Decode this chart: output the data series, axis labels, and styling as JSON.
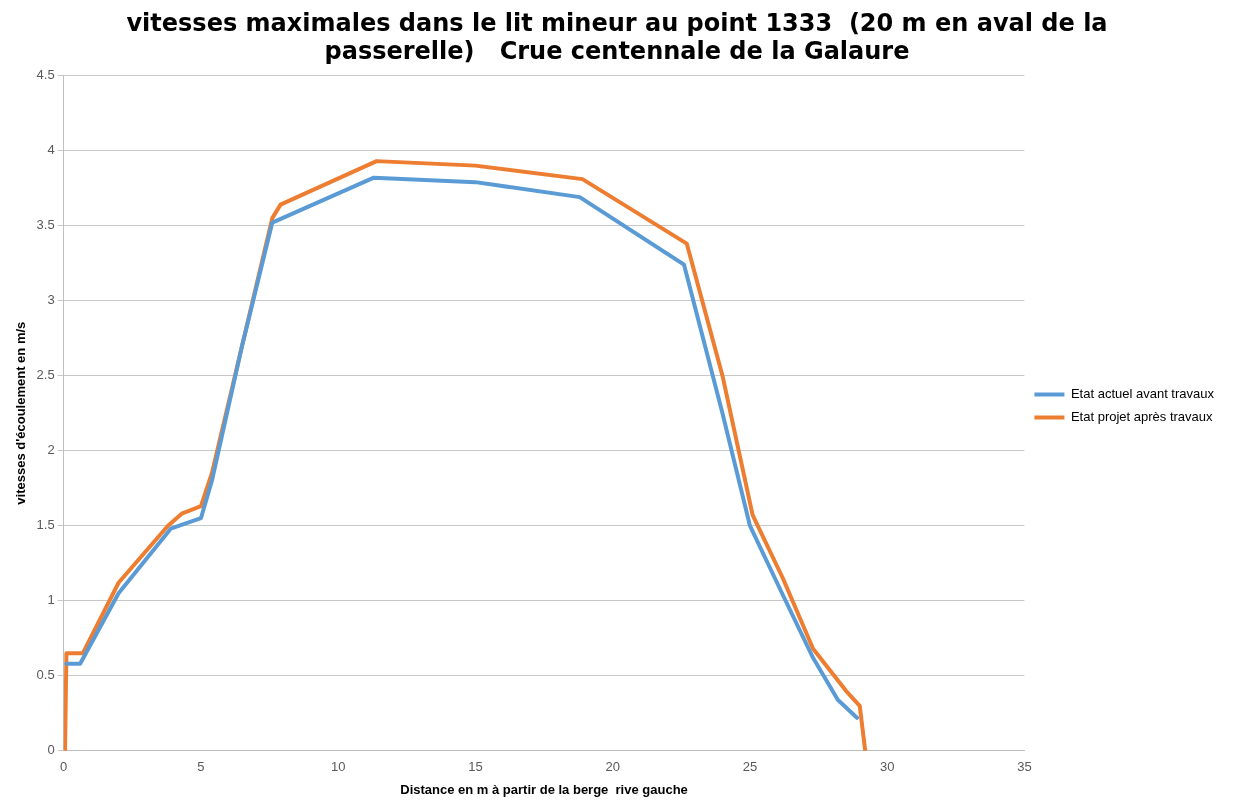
{
  "chart_data": {
    "type": "line",
    "title": "vitesses maximales dans le lit mineur au point 1333  (20 m en aval de la passerelle)   Crue centennale de la Galaure",
    "xlabel": "Distance en m à partir de la berge  rive gauche",
    "ylabel": "vitesses d'écoulement en m/s",
    "xlim": [
      0,
      35
    ],
    "xticks": [
      0,
      5,
      10,
      15,
      20,
      25,
      30,
      35
    ],
    "ylim": [
      0,
      4.5
    ],
    "yticks": [
      0,
      0.5,
      1,
      1.5,
      2,
      2.5,
      3,
      3.5,
      4,
      4.5
    ],
    "grid": "y",
    "legend": "right",
    "marker": "none",
    "line_style": "solid",
    "series": [
      {
        "name": "Etat actuel avant travaux",
        "color": "#5b9bd5",
        "x": [
          0.1,
          0.6,
          2,
          3.9,
          5,
          5.4,
          6.5,
          7.6,
          11.3,
          15,
          18.8,
          22.6,
          24,
          25,
          26.3,
          27.3,
          28.2,
          28.9
        ],
        "values": [
          0.58,
          0.58,
          1.05,
          1.48,
          1.55,
          1.8,
          2.7,
          3.52,
          3.82,
          3.79,
          3.69,
          3.24,
          2.25,
          1.5,
          1.0,
          0.62,
          0.34,
          0.22
        ]
      },
      {
        "name": "Etat projet après travaux",
        "color": "#ed7d31",
        "x": [
          0.05,
          0.1,
          0.7,
          2,
          3.8,
          4.3,
          5,
          5.4,
          7.6,
          7.9,
          11.4,
          15,
          18.9,
          22.7,
          24,
          25.1,
          26.2,
          27.3,
          28.5,
          29,
          29.2
        ],
        "values": [
          0,
          0.65,
          0.65,
          1.12,
          1.5,
          1.58,
          1.63,
          1.85,
          3.55,
          3.64,
          3.93,
          3.9,
          3.81,
          3.38,
          2.5,
          1.57,
          1.15,
          0.68,
          0.4,
          0.3,
          0
        ]
      }
    ]
  }
}
